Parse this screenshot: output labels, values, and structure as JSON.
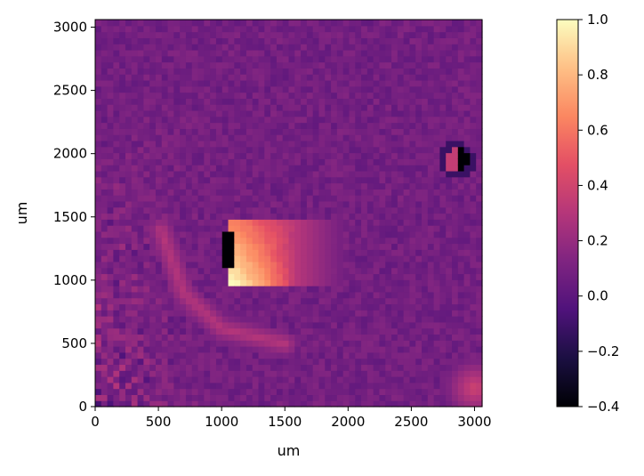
{
  "chart_data": {
    "type": "heatmap",
    "title": "",
    "xlabel": "um",
    "ylabel": "um",
    "xlim": [
      0,
      3060
    ],
    "ylim": [
      0,
      3060
    ],
    "x_ticks": [
      0,
      500,
      1000,
      1500,
      2000,
      2500,
      3000
    ],
    "y_ticks": [
      0,
      500,
      1000,
      1500,
      2000,
      2500,
      3000
    ],
    "grid_cells": 64,
    "colormap": "magma",
    "colorbar": {
      "vmin": -0.4,
      "vmax": 1.0,
      "ticks": [
        -0.4,
        -0.2,
        0.0,
        0.2,
        0.4,
        0.6,
        0.8,
        1.0
      ],
      "tick_labels": [
        "−0.4",
        "−0.2",
        "0.0",
        "0.2",
        "0.4",
        "0.6",
        "0.8",
        "1.0"
      ]
    },
    "field_features": {
      "background": 0.08,
      "bright_lobe": {
        "x_um": [
          1060,
          1600
        ],
        "y_um": [
          980,
          1500
        ],
        "peak": 1.0
      },
      "dark_edge": {
        "x_um": 1040,
        "y_um": [
          1080,
          1380
        ],
        "value": -0.4
      },
      "curved_band": {
        "value": 0.3,
        "description_points_um": [
          [
            520,
            1400
          ],
          [
            700,
            900
          ],
          [
            1000,
            620
          ],
          [
            1500,
            500
          ]
        ]
      },
      "dipole_spot": {
        "x_um": 2860,
        "y_um": 1950,
        "values": [
          -0.4,
          0.35
        ]
      },
      "corner_spot": {
        "x_um": 3000,
        "y_um": 150,
        "value": 0.4
      },
      "left_edge_noise": 0.18
    }
  }
}
